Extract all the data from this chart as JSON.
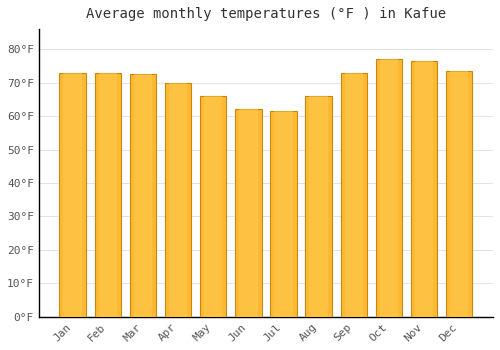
{
  "title": "Average monthly temperatures (°F ) in Kafue",
  "months": [
    "Jan",
    "Feb",
    "Mar",
    "Apr",
    "May",
    "Jun",
    "Jul",
    "Aug",
    "Sep",
    "Oct",
    "Nov",
    "Dec"
  ],
  "values": [
    73,
    73,
    72.5,
    70,
    66,
    62,
    61.5,
    66,
    73,
    77,
    76.5,
    73.5
  ],
  "bar_color_face": "#FDB931",
  "bar_color_edge": "#C8860A",
  "background_color": "#FFFFFF",
  "plot_bg_color": "#FFFFFF",
  "grid_color": "#DDDDDD",
  "title_fontsize": 10,
  "tick_fontsize": 8,
  "ylim": [
    0,
    86
  ],
  "yticks": [
    0,
    10,
    20,
    30,
    40,
    50,
    60,
    70,
    80
  ],
  "spine_color": "#000000",
  "tick_color": "#555555"
}
